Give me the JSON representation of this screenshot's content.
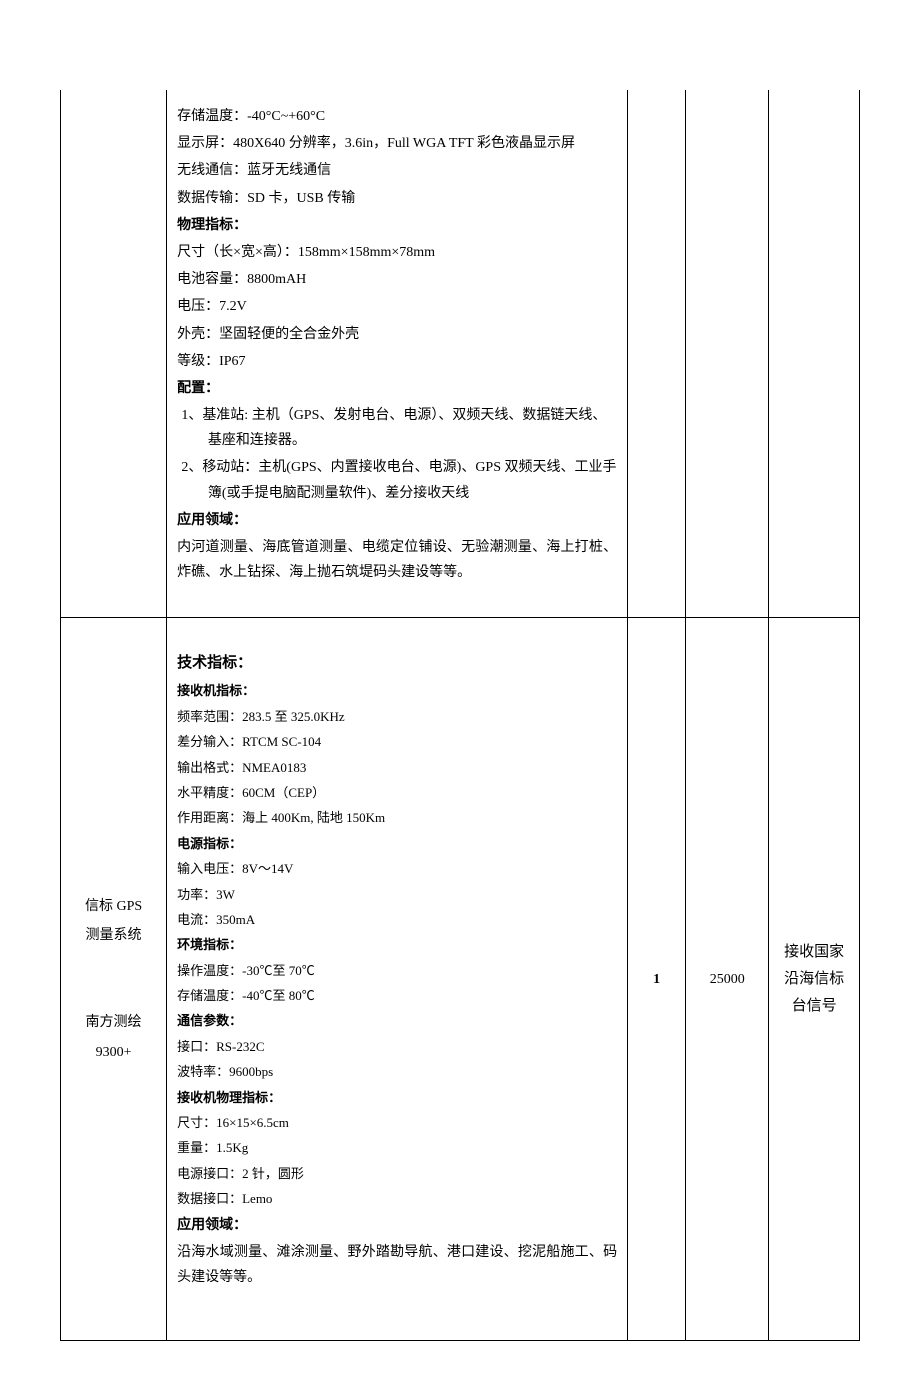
{
  "row1": {
    "col1": "",
    "col2": {
      "lines": [
        {
          "text": "存储温度：-40°C~+60°C"
        },
        {
          "text": "显示屏：480X640 分辨率，3.6in，Full WGA TFT 彩色液晶显示屏"
        },
        {
          "text": "无线通信：蓝牙无线通信"
        },
        {
          "text": "数据传输：SD 卡，USB 传输"
        },
        {
          "text": "物理指标：",
          "bold": true
        },
        {
          "text": "尺寸（长×宽×高）：158mm×158mm×78mm"
        },
        {
          "text": "电池容量：8800mAH"
        },
        {
          "text": "电压：7.2V"
        },
        {
          "text": "外壳：坚固轻便的全合金外壳"
        },
        {
          "text": "等级：IP67"
        },
        {
          "text": "配置：",
          "bold": true
        }
      ],
      "config1_label": "1、",
      "config1_text": "基准站: 主机（GPS、发射电台、电源）、双频天线、数据链天线、基座和连接器。",
      "config2_label": "2、",
      "config2_text": "移动站：主机(GPS、内置接收电台、电源)、GPS 双频天线、工业手簿(或手提电脑配测量软件)、差分接收天线",
      "app_heading": "应用领域：",
      "app_text": "内河道测量、海底管道测量、电缆定位铺设、无验潮测量、海上打桩、炸礁、水上钻探、海上抛石筑堤码头建设等等。"
    }
  },
  "row2": {
    "col1_lines": [
      "信标 GPS",
      "测量系统",
      "",
      "",
      "南方测绘",
      "9300+"
    ],
    "col2": {
      "tech_heading": "技术指标：",
      "sections": [
        {
          "heading": "接收机指标：",
          "items": [
            "频率范围：283.5 至 325.0KHz",
            "差分输入：RTCM SC-104",
            "输出格式：NMEA0183",
            "水平精度：60CM（CEP）",
            "作用距离：海上 400Km, 陆地 150Km"
          ]
        },
        {
          "heading": "电源指标：",
          "items": [
            "输入电压：8V～14V",
            "功率：3W",
            "电流：350mA"
          ]
        },
        {
          "heading": "环境指标：",
          "items": [
            "操作温度：-30℃至 70℃",
            "存储温度：-40℃至 80℃"
          ]
        },
        {
          "heading": "通信参数：",
          "items": [
            "接口：RS-232C",
            "波特率：9600bps"
          ]
        },
        {
          "heading": "接收机物理指标：",
          "items": [
            "尺寸：16×15×6.5cm",
            "重量：1.5Kg",
            "电源接口：2 针，圆形",
            "数据接口：Lemo"
          ]
        }
      ],
      "app_heading": "应用领域：",
      "app_text": "沿海水域测量、滩涂测量、野外踏勘导航、港口建设、挖泥船施工、码头建设等等。"
    },
    "qty": "1",
    "price": "25000",
    "note": "接收国家沿海信标台信号"
  }
}
